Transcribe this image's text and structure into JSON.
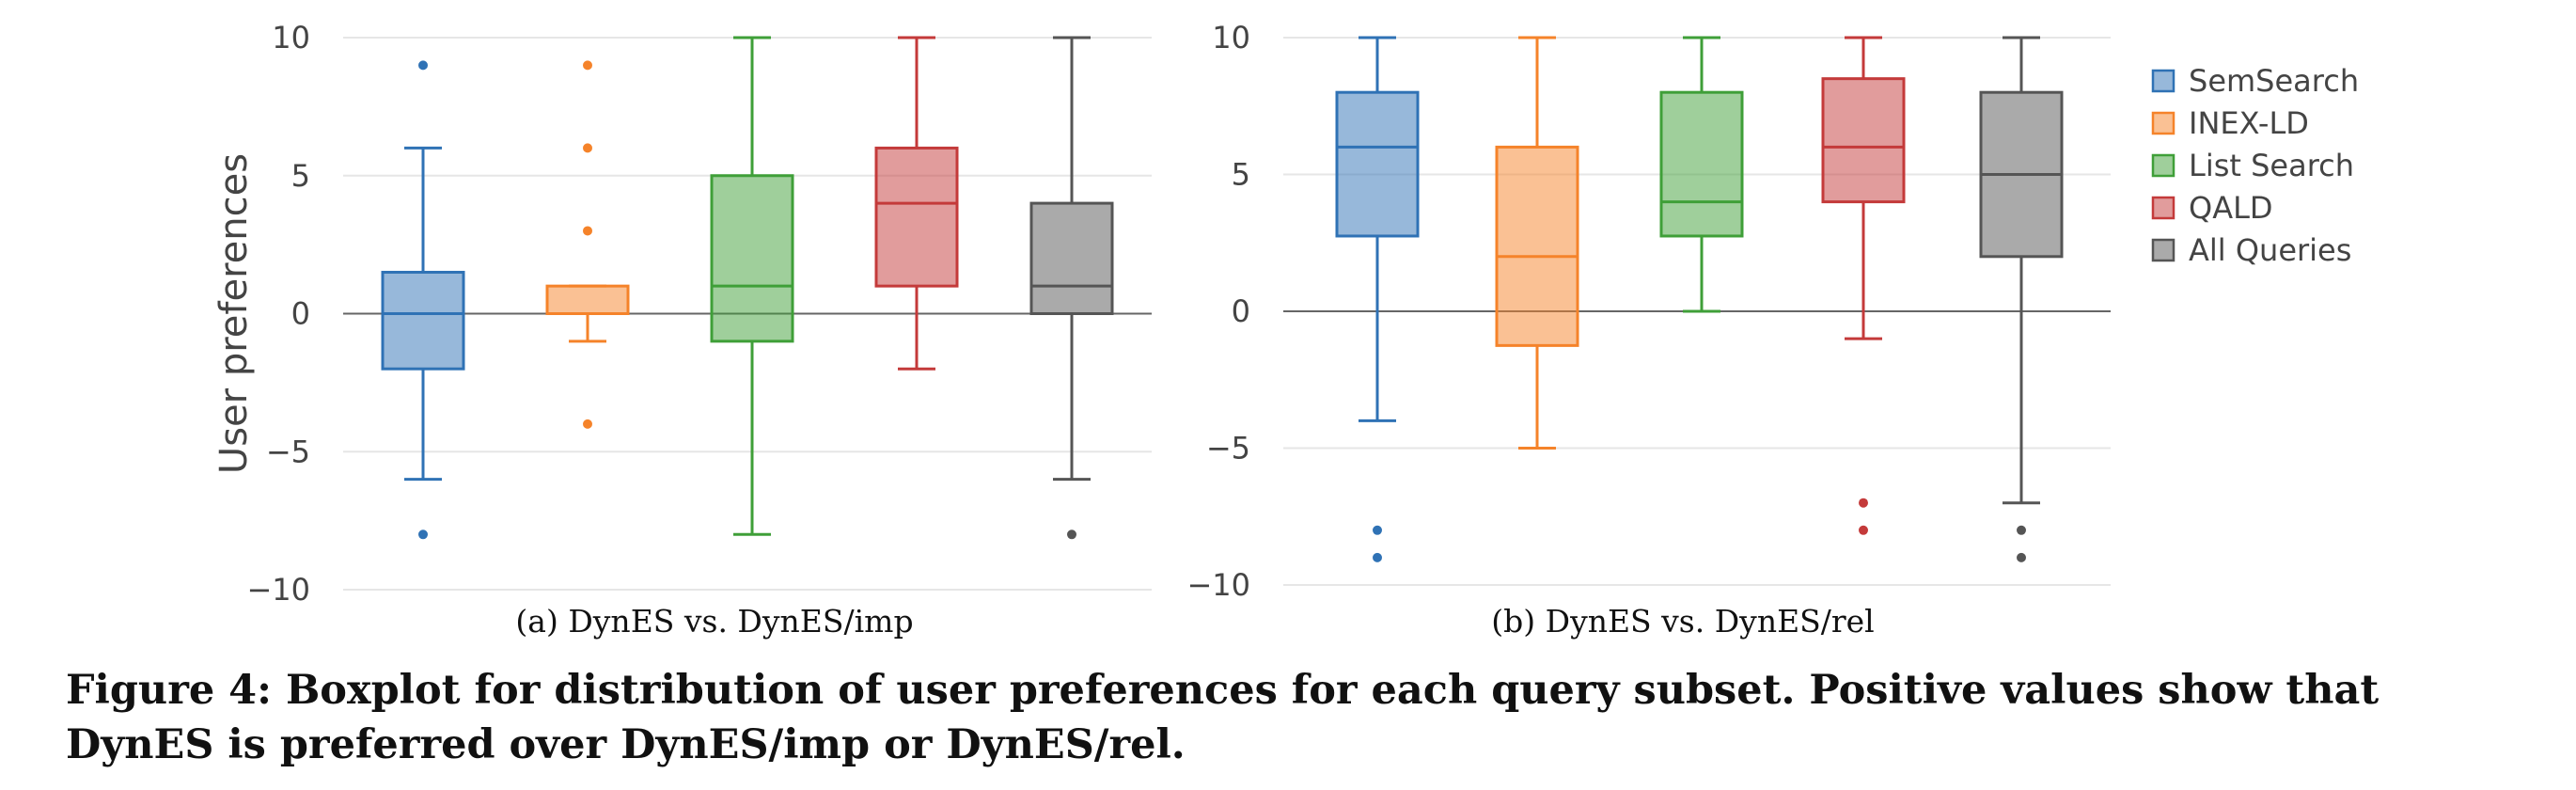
{
  "colors": {
    "SemSearch": "#2f72b5",
    "INEX-LD": "#f5832a",
    "List Search": "#3f9f38",
    "QALD": "#c43a3a",
    "All Queries": "#555555"
  },
  "legend": [
    "SemSearch",
    "INEX-LD",
    "List Search",
    "QALD",
    "All Queries"
  ],
  "caption": "Figure 4: Boxplot for distribution of user preferences for each query subset. Positive values show that DynES is preferred over DynES/imp or DynES/rel.",
  "chart_data": [
    {
      "type": "box",
      "subcaption": "(a)  DynES vs. DynES/imp",
      "ylabel": "User preferences",
      "ylim": [
        -10,
        10
      ],
      "yticks": [
        10,
        5,
        0,
        -5,
        -10
      ],
      "yticklabels": [
        "10",
        "5",
        "0",
        "−5",
        "−10"
      ],
      "grid": true,
      "series": [
        {
          "name": "SemSearch",
          "whisker_low": -6,
          "q1": -2,
          "median": 0,
          "q3": 1.5,
          "whisker_high": 6,
          "outliers": [
            9,
            -8
          ]
        },
        {
          "name": "INEX-LD",
          "whisker_low": -1,
          "q1": 0,
          "median": 0,
          "q3": 1,
          "whisker_high": 1,
          "outliers": [
            9,
            6,
            3,
            -4
          ]
        },
        {
          "name": "List Search",
          "whisker_low": -8,
          "q1": -1,
          "median": 1,
          "q3": 5,
          "whisker_high": 10,
          "outliers": []
        },
        {
          "name": "QALD",
          "whisker_low": -2,
          "q1": 1,
          "median": 4,
          "q3": 6,
          "whisker_high": 10,
          "outliers": []
        },
        {
          "name": "All Queries",
          "whisker_low": -6,
          "q1": 0,
          "median": 1,
          "q3": 4,
          "whisker_high": 10,
          "outliers": [
            -8
          ]
        }
      ]
    },
    {
      "type": "box",
      "subcaption": "(b)  DynES vs. DynES/rel",
      "ylabel": "",
      "ylim": [
        -10,
        10
      ],
      "yticks": [
        10,
        5,
        0,
        -5,
        -10
      ],
      "yticklabels": [
        "10",
        "5",
        "0",
        "−5",
        "−10"
      ],
      "grid": true,
      "legend_position": "right",
      "series": [
        {
          "name": "SemSearch",
          "whisker_low": -4,
          "q1": 2.75,
          "median": 6,
          "q3": 8,
          "whisker_high": 10,
          "outliers": [
            -8,
            -9
          ]
        },
        {
          "name": "INEX-LD",
          "whisker_low": -5,
          "q1": -1.25,
          "median": 2,
          "q3": 6,
          "whisker_high": 10,
          "outliers": []
        },
        {
          "name": "List Search",
          "whisker_low": 0,
          "q1": 2.75,
          "median": 4,
          "q3": 8,
          "whisker_high": 10,
          "outliers": []
        },
        {
          "name": "QALD",
          "whisker_low": -1,
          "q1": 4,
          "median": 6,
          "q3": 8.5,
          "whisker_high": 10,
          "outliers": [
            -7,
            -8
          ]
        },
        {
          "name": "All Queries",
          "whisker_low": -7,
          "q1": 2,
          "median": 5,
          "q3": 8,
          "whisker_high": 10,
          "outliers": [
            -8,
            -9
          ]
        }
      ]
    }
  ]
}
